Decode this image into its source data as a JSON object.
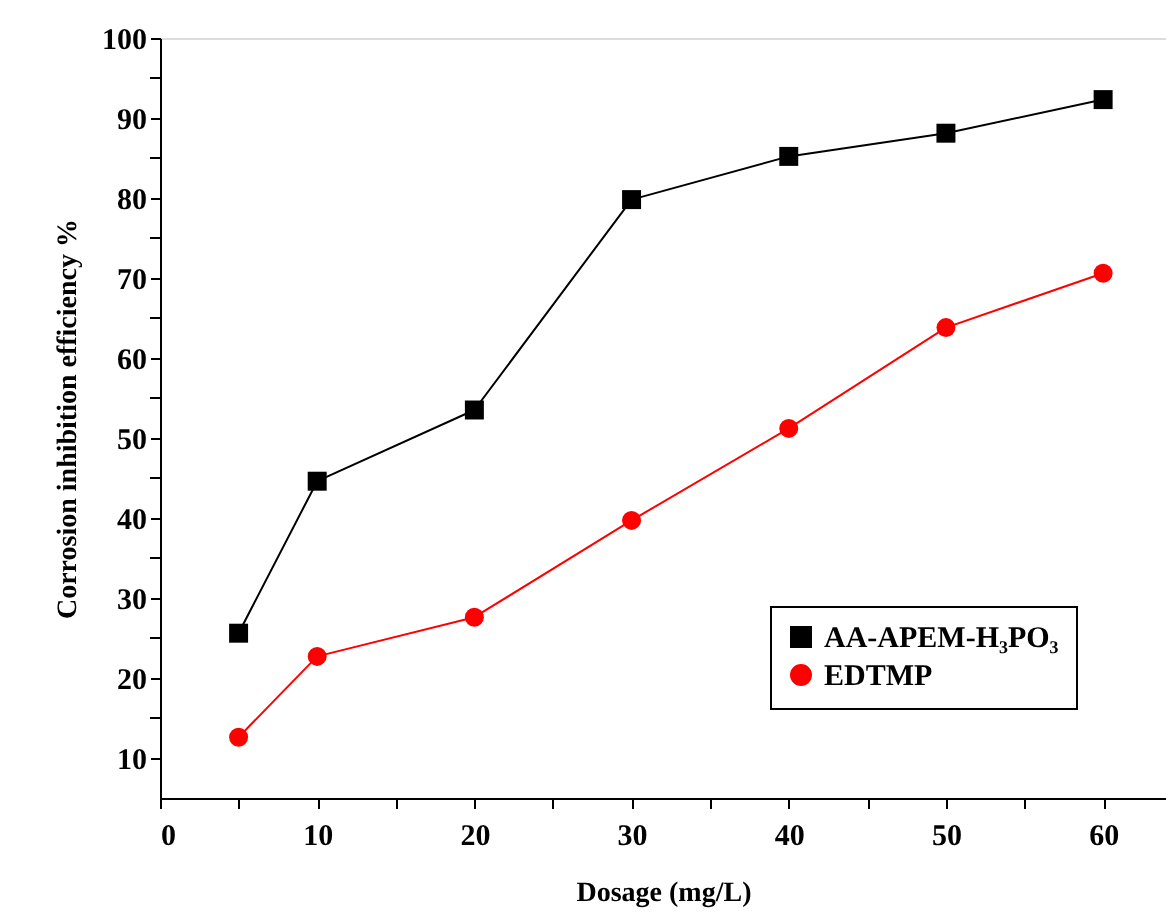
{
  "chart_data": {
    "type": "line",
    "xlabel": "Dosage (mg/L)",
    "ylabel": "Corrosion inhibition efficiency %",
    "x": [
      5,
      10,
      20,
      30,
      40,
      50,
      60
    ],
    "series": [
      {
        "name": "AA-APEM-H₃PO₃",
        "color": "#000000",
        "marker": "square",
        "values": [
          25.6,
          44.6,
          53.5,
          79.8,
          85.2,
          88.1,
          92.3
        ]
      },
      {
        "name": "EDTMP",
        "color": "#ff0000",
        "marker": "circle",
        "values": [
          12.6,
          22.7,
          27.6,
          39.7,
          51.2,
          63.8,
          70.6
        ]
      }
    ],
    "xlim": [
      0,
      64
    ],
    "xticks": [
      0,
      {
        "value": 5,
        "label": null
      },
      10,
      {
        "value": 15,
        "label": null
      },
      20,
      {
        "value": 25,
        "label": null
      },
      30,
      {
        "value": 35,
        "label": null
      },
      40,
      {
        "value": 45,
        "label": null
      },
      50,
      {
        "value": 55,
        "label": null
      },
      60
    ],
    "ylim": [
      5,
      100
    ],
    "yticks": [
      10,
      {
        "value": 15,
        "label": null
      },
      20,
      {
        "value": 25,
        "label": null
      },
      30,
      {
        "value": 35,
        "label": null
      },
      40,
      {
        "value": 45,
        "label": null
      },
      50,
      {
        "value": 55,
        "label": null
      },
      60,
      {
        "value": 65,
        "label": null
      },
      70,
      {
        "value": 75,
        "label": null
      },
      80,
      {
        "value": 85,
        "label": null
      },
      90,
      {
        "value": 95,
        "label": null
      },
      100
    ],
    "grid": false,
    "legend": "bottom right",
    "line_style": "solid"
  }
}
